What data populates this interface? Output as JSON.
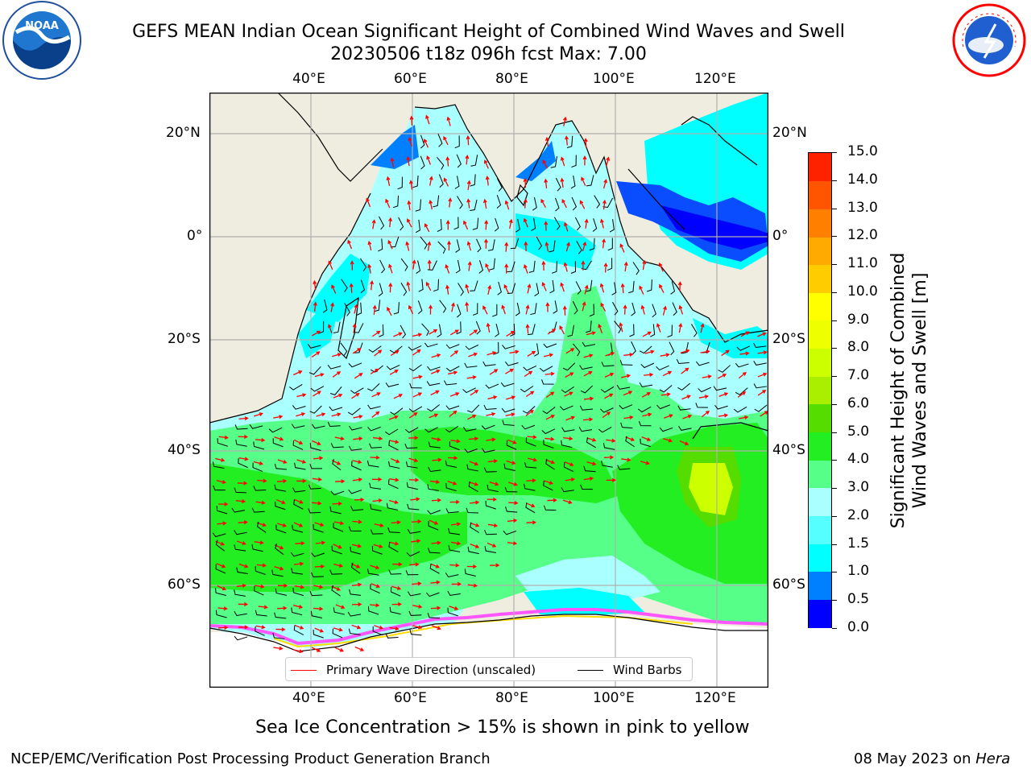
{
  "header": {
    "title_line1": "GEFS MEAN Indian Ocean Significant Height of Combined Wind Waves and Swell",
    "title_line2": "20230506 t18z 096h fcst   Max: 7.00",
    "left_logo_text": "NOAA",
    "right_logo_text": "NATIONAL WEATHER SERVICE"
  },
  "map": {
    "lon_labels": [
      "40°E",
      "60°E",
      "80°E",
      "100°E",
      "120°E"
    ],
    "lat_labels": [
      "20°N",
      "0°",
      "20°S",
      "40°S",
      "60°S"
    ],
    "legend": {
      "wave_direction": "Primary Wave Direction (unscaled)",
      "wind_barbs": "Wind Barbs"
    },
    "colors": {
      "land": "#efede0",
      "sea_ice": "#ff55ff",
      "wave_arrow": "#ff0000",
      "wind_barb": "#000000"
    }
  },
  "colorbar": {
    "label_line1": "Significant Height of Combined",
    "label_line2": "Wind Waves and Swell [m]",
    "ticks": [
      "0.0",
      "0.5",
      "1.0",
      "1.5",
      "2.0",
      "3.0",
      "4.0",
      "5.0",
      "6.0",
      "7.0",
      "8.0",
      "9.0",
      "10.0",
      "11.0",
      "12.0",
      "13.0",
      "14.0",
      "15.0"
    ],
    "colors": [
      "#0000ff",
      "#0080ff",
      "#00ffff",
      "#55ffff",
      "#aaffff",
      "#55ff88",
      "#22ee22",
      "#55dd00",
      "#aaee00",
      "#ccff00",
      "#eeff00",
      "#ffff00",
      "#ffcc00",
      "#ffaa00",
      "#ff8000",
      "#ff5500",
      "#ff2200"
    ]
  },
  "caption": "Sea Ice Concentration > 15% is shown in pink to yellow",
  "footer": {
    "left": "NCEP/EMC/Verification Post Processing Product Generation Branch",
    "right_prefix": "08 May 2023 on ",
    "right_host": "Hera"
  }
}
